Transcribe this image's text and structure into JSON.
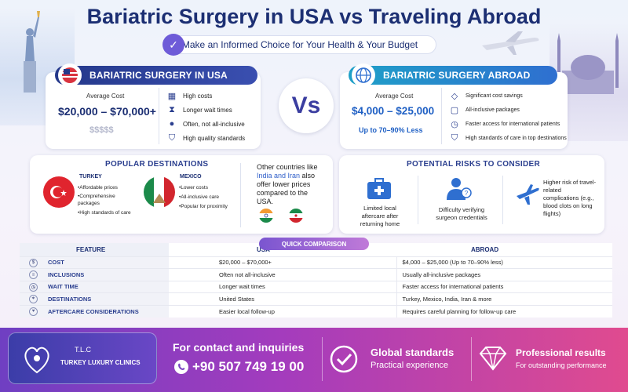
{
  "header": {
    "title": "Bariatric Surgery in USA vs Traveling Abroad",
    "subtitle": "Make an Informed Choice for Your Health & Your Budget"
  },
  "usa": {
    "badge": "BARIATRIC SURGERY IN USA",
    "cost_label": "Average Cost",
    "cost_value": "$20,000 – $70,000+",
    "price_level": "$$$$$",
    "bullets": [
      "High costs",
      "Longer wait times",
      "Often, not all-inclusive",
      "High quality standards"
    ]
  },
  "vs_label": "Vs",
  "abroad": {
    "badge": "BARIATRIC SURGERY ABROAD",
    "cost_label": "Average Cost",
    "cost_value": "$4,000 – $25,000",
    "savings": "Up to 70–90% Less",
    "bullets": [
      "Significant cost savings",
      "All-inclusive packages",
      "Faster access for international patients",
      "High standards of care in top destinations"
    ]
  },
  "destinations": {
    "title": "POPULAR DESTINATIONS",
    "turkey": {
      "name": "TURKEY",
      "items": [
        "•Affordable prices",
        "•Comprehensive packages",
        "•High standards of care"
      ]
    },
    "mexico": {
      "name": "MEXICO",
      "items": [
        "•Lower costs",
        "•All-inclusive care",
        "•Popular for proximity"
      ]
    },
    "other_pre": "Other countries like ",
    "other_countries": "India and Iran",
    "other_post": " also offer lower prices compared to the USA."
  },
  "risks": {
    "title": "POTENTIAL RISKS TO CONSIDER",
    "items": [
      "Limited local aftercare after returning home",
      "Difficulty verifying surgeon credentials",
      "Higher risk of travel-related complications (e.g., blood clots on long flights)"
    ]
  },
  "comparison": {
    "title": "QUICK COMPARISON",
    "headers": {
      "feature": "FEATURE",
      "usa": "USA",
      "abroad": "ABROAD"
    },
    "rows": [
      {
        "feature": "COST",
        "icon": "$",
        "usa": "$20,000 – $70,000+",
        "abroad": "$4,000 – $25,000 (Up to 70–90% less)"
      },
      {
        "feature": "INCLUSIONS",
        "icon": "≡",
        "usa": "Often not all-inclusive",
        "abroad": "Usually all-inclusive packages"
      },
      {
        "feature": "WAIT TIME",
        "icon": "◷",
        "usa": "Longer wait times",
        "abroad": "Faster access for international patients"
      },
      {
        "feature": "DESTINATIONS",
        "icon": "⌖",
        "usa": "United States",
        "abroad": "Turkey, Mexico, India, Iran & more"
      },
      {
        "feature": "AFTERCARE CONSIDERATIONS",
        "icon": "♥",
        "usa": "Easier local follow-up",
        "abroad": "Requires careful planning for follow-up care"
      }
    ]
  },
  "footer": {
    "logo_short": "T.L.C",
    "logo_name": "TURKEY LUXURY CLINICS",
    "contact_title": "For contact and inquiries",
    "phone": "+90 507 749 19 00",
    "standards_title": "Global standards",
    "standards_sub": "Practical experience",
    "results_title": "Professional results",
    "results_sub": "For outstanding performance"
  },
  "colors": {
    "navy": "#1c2f73",
    "accent_blue": "#2f6fd0",
    "purple": "#6f3fc2",
    "pink": "#e04b8f"
  },
  "icons": [
    "statue-of-liberty-icon",
    "mosque-icon",
    "airplane-icon",
    "us-globe-icon",
    "globe-icon",
    "whatsapp-icon",
    "check-circle-icon",
    "diamond-icon"
  ]
}
